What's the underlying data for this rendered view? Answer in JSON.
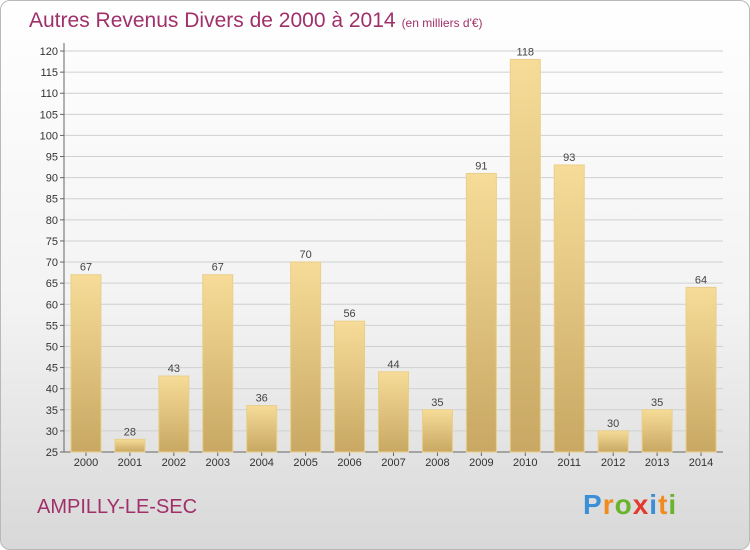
{
  "header": {
    "title": "Autres Revenus Divers de 2000 à 2014",
    "subtitle": "(en milliers d'€)"
  },
  "footer": {
    "place": "AMPILLY-LE-SEC",
    "logo_letters": [
      {
        "ch": "P",
        "color": "#3a8fd6"
      },
      {
        "ch": "r",
        "color": "#f08c1e"
      },
      {
        "ch": "o",
        "color": "#6ab42d"
      },
      {
        "ch": "x",
        "color": "#e23b2e"
      },
      {
        "ch": "i",
        "color": "#3a8fd6"
      },
      {
        "ch": "t",
        "color": "#f08c1e"
      },
      {
        "ch": "i",
        "color": "#6ab42d"
      }
    ]
  },
  "colors": {
    "title": "#a0306a",
    "bar_light": "#f6dc98",
    "bar_dark": "#c8a863",
    "grid": "#d0d0d0"
  },
  "chart_data": {
    "type": "bar",
    "title": "Autres Revenus Divers de 2000 à 2014",
    "subtitle": "(en milliers d'€)",
    "xlabel": "",
    "ylabel": "",
    "categories": [
      "2000",
      "2001",
      "2002",
      "2003",
      "2004",
      "2005",
      "2006",
      "2007",
      "2008",
      "2009",
      "2010",
      "2011",
      "2012",
      "2013",
      "2014"
    ],
    "values": [
      67,
      28,
      43,
      67,
      36,
      70,
      56,
      44,
      35,
      91,
      118,
      93,
      30,
      35,
      64
    ],
    "ylim": [
      25,
      120
    ],
    "ytick_step": 5,
    "grid": true,
    "value_labels": true
  }
}
